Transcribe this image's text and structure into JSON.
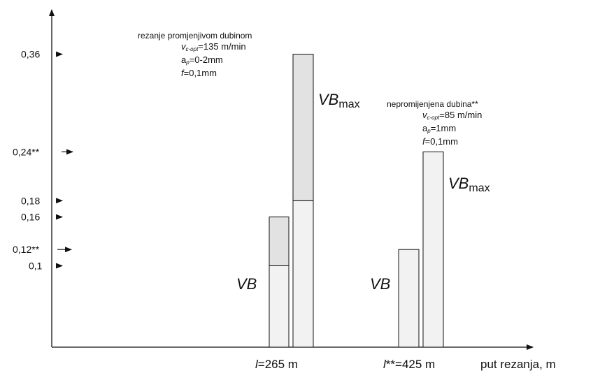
{
  "chart_data": {
    "type": "bar",
    "xlabel": "put rezanja, m",
    "ylabel": "",
    "ticks": [
      {
        "label": "0,36",
        "value": 0.36
      },
      {
        "label": "0,24**",
        "value": 0.24
      },
      {
        "label": "0,18",
        "value": 0.18
      },
      {
        "label": "0,16",
        "value": 0.16
      },
      {
        "label": "0,12**",
        "value": 0.12
      },
      {
        "label": "0,1",
        "value": 0.1
      }
    ],
    "groups": [
      {
        "category": "l=265 m",
        "category_italic": "l",
        "category_rest": "=265 m",
        "vb_label": "VB",
        "vbmax_label_main": "VB",
        "vbmax_label_sub": "max",
        "bars": [
          {
            "measure": "VB",
            "total": 0.16,
            "lower": 0.1
          },
          {
            "measure": "VBmax",
            "total": 0.36,
            "lower": 0.18
          }
        ]
      },
      {
        "category": "l**=425 m",
        "category_italic": "l",
        "category_rest": "**=425 m",
        "vb_label": "VB",
        "vbmax_label_main": "VB",
        "vbmax_label_sub": "max",
        "bars": [
          {
            "measure": "VB",
            "total": 0.12,
            "lower": 0.12
          },
          {
            "measure": "VBmax",
            "total": 0.24,
            "lower": 0.24
          }
        ]
      }
    ],
    "annotations": [
      {
        "title": "rezanje promjenjivom dubinom",
        "v_main": "v",
        "v_sub": "c-opt",
        "v_value": "=135 m/min",
        "a_main": "a",
        "a_sub": "p",
        "a_value": "=0-2mm",
        "f_main": "f",
        "f_value": "=0,1mm"
      },
      {
        "title": "nepromijenjena dubina**",
        "v_main": "v",
        "v_sub": "c-opt",
        "v_value": "=85 m/min",
        "a_main": "a",
        "a_sub": "p",
        "a_value": "=1mm",
        "f_main": "f",
        "f_value": "=0,1mm"
      }
    ],
    "colors": {
      "bar_light": "#f2f2f2",
      "bar_shaded": "#e2e2e2",
      "stroke": "#111111"
    },
    "grid": false
  }
}
